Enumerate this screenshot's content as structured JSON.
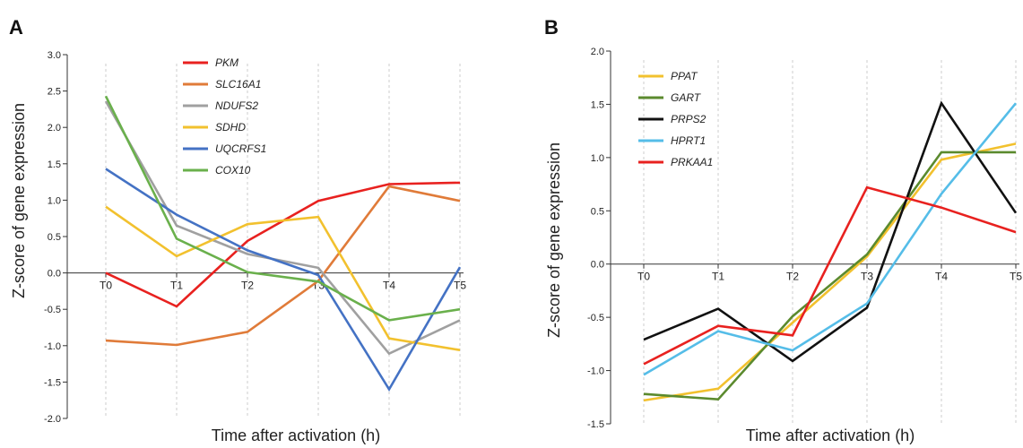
{
  "panels": [
    {
      "letter": "A",
      "chart_data": {
        "type": "line",
        "x": [
          "T0",
          "T1",
          "T2",
          "T3",
          "T4",
          "T5"
        ],
        "xlabel": "Time after activation (h)",
        "ylabel": "Z-score of gene expression",
        "ylim": [
          -2.0,
          3.0
        ],
        "yticks": [
          "3.0",
          "2.5",
          "2.0",
          "1.5",
          "1.0",
          "0.5",
          "0.0",
          "-0.5",
          "-1.0",
          "-1.5",
          "-2.0"
        ],
        "legend_position": "top-center",
        "series": [
          {
            "name": "PKM",
            "color": "#e8211f",
            "values": [
              0.0,
              -0.46,
              0.44,
              0.99,
              1.22,
              1.24
            ]
          },
          {
            "name": "SLC16A1",
            "color": "#e07b39",
            "values": [
              -0.93,
              -0.99,
              -0.81,
              -0.11,
              1.19,
              0.99
            ]
          },
          {
            "name": "NDUFS2",
            "color": "#a0a0a0",
            "values": [
              2.36,
              0.65,
              0.26,
              0.07,
              -1.11,
              -0.65
            ]
          },
          {
            "name": "SDHD",
            "color": "#f2c12e",
            "values": [
              0.91,
              0.23,
              0.67,
              0.77,
              -0.9,
              -1.06
            ]
          },
          {
            "name": "UQCRFS1",
            "color": "#4472c4",
            "values": [
              1.43,
              0.8,
              0.31,
              -0.03,
              -1.6,
              0.08
            ]
          },
          {
            "name": "COX10",
            "color": "#6ab04c",
            "values": [
              2.43,
              0.47,
              0.01,
              -0.12,
              -0.65,
              -0.5
            ]
          }
        ]
      }
    },
    {
      "letter": "B",
      "chart_data": {
        "type": "line",
        "x": [
          "T0",
          "T1",
          "T2",
          "T3",
          "T4",
          "T5"
        ],
        "xlabel": "Time after activation (h)",
        "ylabel": "Z-score of gene expression",
        "ylim": [
          -1.5,
          2.0
        ],
        "yticks": [
          "2.0",
          "1.5",
          "1.0",
          "0.5",
          "0.0",
          "-0.5",
          "-1.0",
          "-1.5"
        ],
        "legend_position": "top-left",
        "series": [
          {
            "name": "PPAT",
            "color": "#f2c12e",
            "values": [
              -1.28,
              -1.17,
              -0.55,
              0.07,
              0.98,
              1.13
            ]
          },
          {
            "name": "GART",
            "color": "#5b8a2e",
            "values": [
              -1.22,
              -1.27,
              -0.49,
              0.09,
              1.05,
              1.05
            ]
          },
          {
            "name": "PRPS2",
            "color": "#111111",
            "values": [
              -0.71,
              -0.42,
              -0.91,
              -0.41,
              1.51,
              0.48
            ]
          },
          {
            "name": "HPRT1",
            "color": "#55bde8",
            "values": [
              -1.04,
              -0.63,
              -0.81,
              -0.37,
              0.66,
              1.51
            ]
          },
          {
            "name": "PRKAA1",
            "color": "#e8211f",
            "values": [
              -0.94,
              -0.58,
              -0.67,
              0.72,
              0.53,
              0.3
            ]
          }
        ]
      }
    }
  ]
}
